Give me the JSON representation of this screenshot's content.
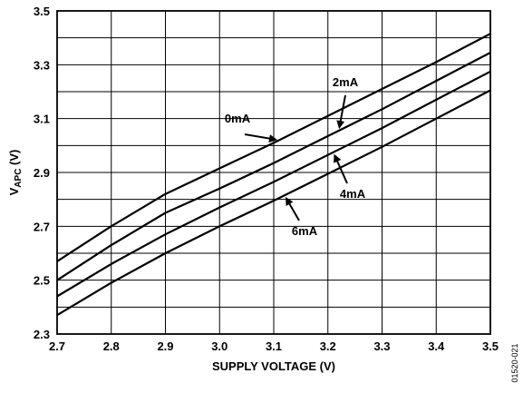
{
  "chart_data": {
    "type": "line",
    "xlabel": "SUPPLY VOLTAGE (V)",
    "ylabel_main": "V",
    "ylabel_sub": "APC",
    "ylabel_unit": " (V)",
    "xlim": [
      2.7,
      3.5
    ],
    "ylim": [
      2.3,
      3.5
    ],
    "x_ticks": [
      "2.7",
      "2.8",
      "2.9",
      "3.0",
      "3.1",
      "3.2",
      "3.3",
      "3.4",
      "3.5"
    ],
    "y_ticks": [
      "2.3",
      "2.5",
      "2.7",
      "2.9",
      "3.1",
      "3.3",
      "3.5"
    ],
    "grid": true,
    "figure_id": "01520-021",
    "series": [
      {
        "name": "0mA",
        "x": [
          2.7,
          2.8,
          2.9,
          3.0,
          3.1,
          3.2,
          3.3,
          3.4,
          3.5
        ],
        "y": [
          2.57,
          2.7,
          2.82,
          2.915,
          3.01,
          3.11,
          3.21,
          3.31,
          3.415
        ]
      },
      {
        "name": "2mA",
        "x": [
          2.7,
          2.8,
          2.9,
          3.0,
          3.1,
          3.2,
          3.3,
          3.4,
          3.5
        ],
        "y": [
          2.5,
          2.63,
          2.75,
          2.84,
          2.935,
          3.035,
          3.135,
          3.24,
          3.345
        ]
      },
      {
        "name": "4mA",
        "x": [
          2.7,
          2.8,
          2.9,
          3.0,
          3.1,
          3.2,
          3.3,
          3.4,
          3.5
        ],
        "y": [
          2.44,
          2.56,
          2.67,
          2.77,
          2.865,
          2.965,
          3.065,
          3.17,
          3.275
        ]
      },
      {
        "name": "6mA",
        "x": [
          2.7,
          2.8,
          2.9,
          3.0,
          3.1,
          3.2,
          3.3,
          3.4,
          3.5
        ],
        "y": [
          2.37,
          2.49,
          2.6,
          2.7,
          2.795,
          2.895,
          2.995,
          3.1,
          3.205
        ]
      }
    ]
  }
}
